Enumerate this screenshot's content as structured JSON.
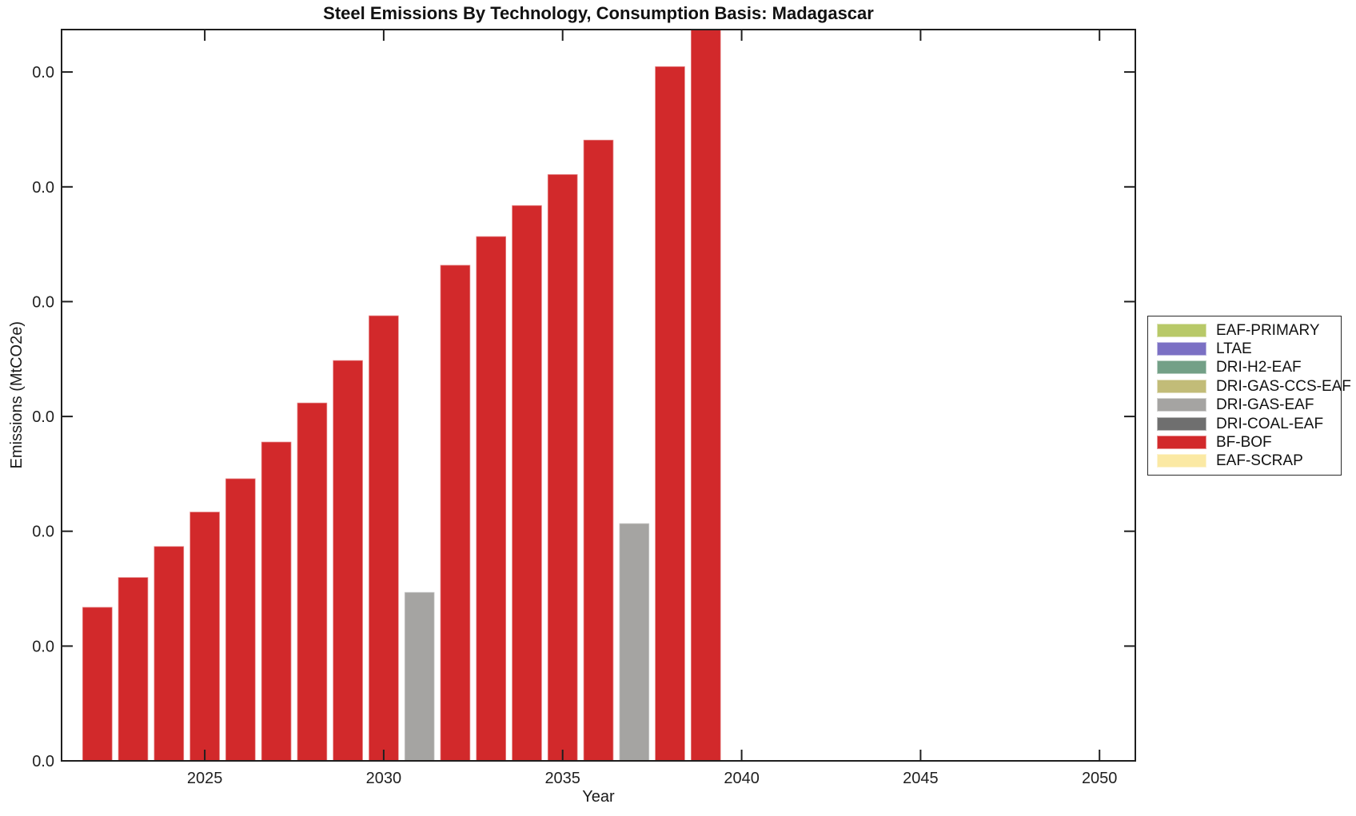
{
  "figure": {
    "background": "#ffffff",
    "axis_color": "#1f1f1f"
  },
  "chart_data": {
    "type": "bar",
    "title": "Steel Emissions By Technology, Consumption Basis: Madagascar",
    "xlabel": "Year",
    "ylabel": "Emissions (MtCO2e)",
    "xlim": [
      2021,
      2051
    ],
    "ylim": [
      0,
      6.37
    ],
    "grid": "off",
    "x_tick_values": [
      2025,
      2030,
      2035,
      2040,
      2045,
      2050
    ],
    "x_tick_labels": [
      "2025",
      "2030",
      "2035",
      "2040",
      "2045",
      "2050"
    ],
    "y_tick_values": [
      0,
      1,
      2,
      3,
      4,
      5,
      6
    ],
    "y_tick_label": "0.0",
    "value_note": "Every y-axis tick label displays 0.0 (values are below the 0.1 rounding threshold); bar values here are expressed in y-gridline units as read from the plot; the 2039 bar reaches the top of the axes",
    "bar_width_years": 0.84,
    "bars": [
      {
        "year": 2022,
        "tech": "BF-BOF",
        "value": 1.34
      },
      {
        "year": 2023,
        "tech": "BF-BOF",
        "value": 1.6
      },
      {
        "year": 2024,
        "tech": "BF-BOF",
        "value": 1.87
      },
      {
        "year": 2025,
        "tech": "BF-BOF",
        "value": 2.17
      },
      {
        "year": 2026,
        "tech": "BF-BOF",
        "value": 2.46
      },
      {
        "year": 2027,
        "tech": "BF-BOF",
        "value": 2.78
      },
      {
        "year": 2028,
        "tech": "BF-BOF",
        "value": 3.12
      },
      {
        "year": 2029,
        "tech": "BF-BOF",
        "value": 3.49
      },
      {
        "year": 2030,
        "tech": "BF-BOF",
        "value": 3.88
      },
      {
        "year": 2031,
        "tech": "DRI-GAS-EAF",
        "value": 1.47
      },
      {
        "year": 2032,
        "tech": "BF-BOF",
        "value": 4.32
      },
      {
        "year": 2033,
        "tech": "BF-BOF",
        "value": 4.57
      },
      {
        "year": 2034,
        "tech": "BF-BOF",
        "value": 4.84
      },
      {
        "year": 2035,
        "tech": "BF-BOF",
        "value": 5.11
      },
      {
        "year": 2036,
        "tech": "BF-BOF",
        "value": 5.41
      },
      {
        "year": 2037,
        "tech": "DRI-GAS-EAF",
        "value": 2.07
      },
      {
        "year": 2038,
        "tech": "BF-BOF",
        "value": 6.05
      },
      {
        "year": 2039,
        "tech": "BF-BOF",
        "value": 6.37
      }
    ],
    "legend": {
      "position": "right-outside",
      "items": [
        {
          "label": "EAF-PRIMARY",
          "color": "#b8c968"
        },
        {
          "label": "LTAE",
          "color": "#7b70c4"
        },
        {
          "label": "DRI-H2-EAF",
          "color": "#73a087"
        },
        {
          "label": "DRI-GAS-CCS-EAF",
          "color": "#c2bc78"
        },
        {
          "label": "DRI-GAS-EAF",
          "color": "#a5a4a2"
        },
        {
          "label": "DRI-COAL-EAF",
          "color": "#6f6f6f"
        },
        {
          "label": "BF-BOF",
          "color": "#d2292b"
        },
        {
          "label": "EAF-SCRAP",
          "color": "#fbe9a4"
        }
      ]
    }
  }
}
